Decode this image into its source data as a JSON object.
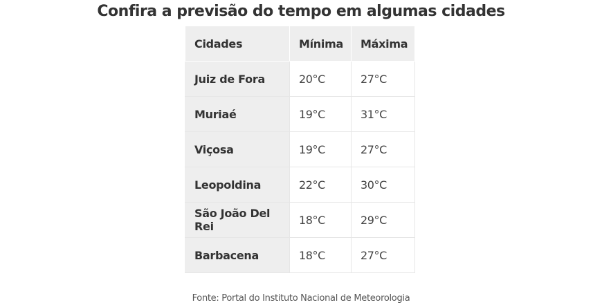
{
  "title": "Confira a previsão do tempo em algumas cidades",
  "table": {
    "headers": [
      "Cidades",
      "Mínima",
      "Máxima"
    ],
    "rows": [
      [
        "Juiz de Fora",
        "20°C",
        "27°C"
      ],
      [
        "Muriaé",
        "19°C",
        "31°C"
      ],
      [
        "Viçosa",
        "19°C",
        "27°C"
      ],
      [
        "Leopoldina",
        "22°C",
        "30°C"
      ],
      [
        "São João Del Rei",
        "18°C",
        "29°C"
      ],
      [
        "Barbacena",
        "18°C",
        "27°C"
      ]
    ]
  },
  "source": "Fonte: Portal do Instituto Nacional de Meteorologia"
}
